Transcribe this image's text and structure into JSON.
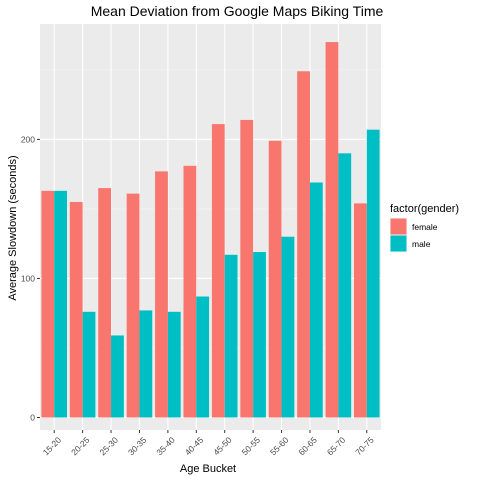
{
  "chart_data": {
    "type": "bar",
    "title": "Mean Deviation from Google Maps Biking Time",
    "xlabel": "Age Bucket",
    "ylabel": "Average Slowdown (seconds)",
    "categories": [
      "15-20",
      "20-25",
      "25-30",
      "30-35",
      "35-40",
      "40-45",
      "45-50",
      "50-55",
      "55-60",
      "60-65",
      "65-70",
      "70-75"
    ],
    "series": [
      {
        "name": "female",
        "color": "#F8766D",
        "values": [
          163,
          155,
          165,
          161,
          177,
          181,
          211,
          214,
          199,
          249,
          270,
          154
        ]
      },
      {
        "name": "male",
        "color": "#00BFC4",
        "values": [
          163,
          76,
          59,
          77,
          76,
          87,
          117,
          119,
          130,
          169,
          190,
          207
        ]
      }
    ],
    "yticks": [
      0,
      100,
      200
    ],
    "ylim": [
      -9,
      283
    ],
    "grid": true,
    "legend": {
      "title": "factor(gender)",
      "placement": "right"
    }
  }
}
